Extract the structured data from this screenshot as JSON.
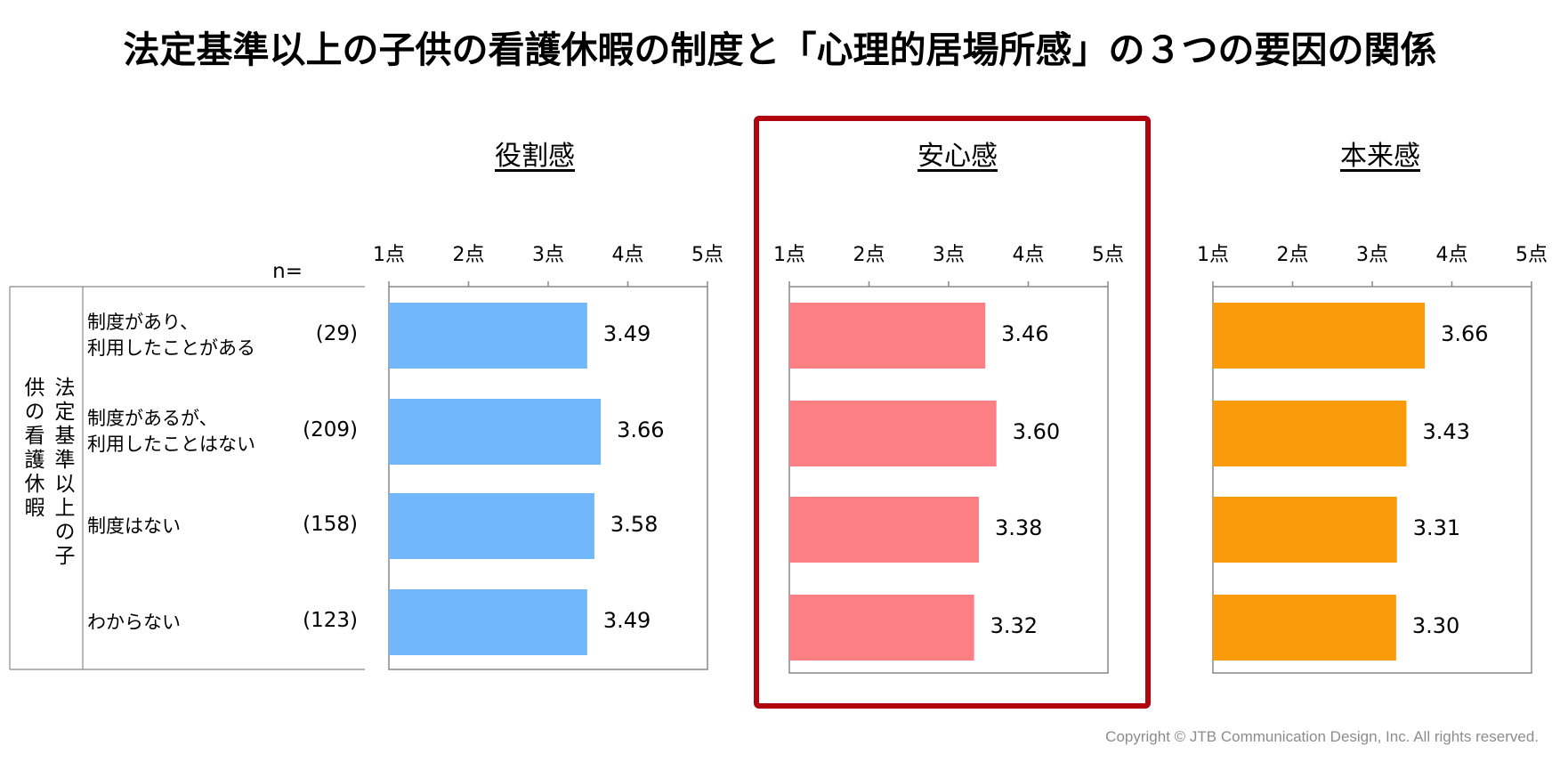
{
  "title": "法定基準以上の子供の看護休暇の制度と「心理的居場所感」の３つの要因の関係",
  "n_header": "n=",
  "group_label": "法定基準以上の子供の看護休暇",
  "rows": [
    {
      "label_lines": [
        "制度があり、",
        "利用したことがある"
      ],
      "n": "(29)"
    },
    {
      "label_lines": [
        "制度があるが、",
        "利用したことはない"
      ],
      "n": "(209)"
    },
    {
      "label_lines": [
        "制度はない"
      ],
      "n": "(158)"
    },
    {
      "label_lines": [
        "わからない"
      ],
      "n": "(123)"
    }
  ],
  "chart_data": [
    {
      "type": "bar",
      "title": "役割感",
      "categories": [
        "制度があり、利用したことがある",
        "制度があるが、利用したことはない",
        "制度はない",
        "わからない"
      ],
      "values": [
        3.49,
        3.66,
        3.58,
        3.49
      ],
      "value_labels": [
        "3.49",
        "3.66",
        "3.58",
        "3.49"
      ],
      "xlim": [
        1,
        5
      ],
      "ticks": [
        "1点",
        "2点",
        "3点",
        "4点",
        "5点"
      ],
      "color": "#73b7fb",
      "highlighted": false
    },
    {
      "type": "bar",
      "title": "安心感",
      "categories": [
        "制度があり、利用したことがある",
        "制度があるが、利用したことはない",
        "制度はない",
        "わからない"
      ],
      "values": [
        3.46,
        3.6,
        3.38,
        3.32
      ],
      "value_labels": [
        "3.46",
        "3.60",
        "3.38",
        "3.32"
      ],
      "xlim": [
        1,
        5
      ],
      "ticks": [
        "1点",
        "2点",
        "3点",
        "4点",
        "5点"
      ],
      "color": "#fd7f86",
      "highlighted": true
    },
    {
      "type": "bar",
      "title": "本来感",
      "categories": [
        "制度があり、利用したことがある",
        "制度があるが、利用したことはない",
        "制度はない",
        "わからない"
      ],
      "values": [
        3.66,
        3.43,
        3.31,
        3.3
      ],
      "value_labels": [
        "3.66",
        "3.43",
        "3.31",
        "3.30"
      ],
      "xlim": [
        1,
        5
      ],
      "ticks": [
        "1点",
        "2点",
        "3点",
        "4点",
        "5点"
      ],
      "color": "#f99b0b",
      "highlighted": false
    }
  ],
  "highlight_color": "#b0060f",
  "copyright": "Copyright © JTB Communication Design, Inc. All rights reserved."
}
